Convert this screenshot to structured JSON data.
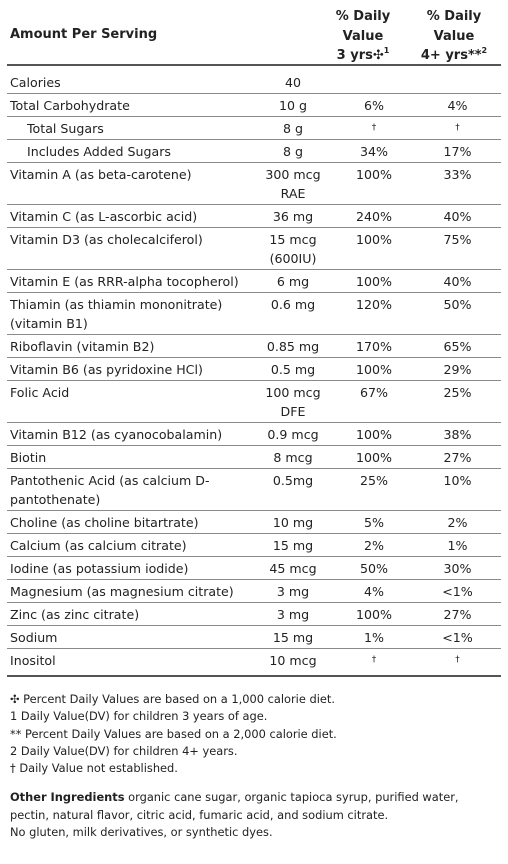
{
  "header": {
    "amount_per_serving": "Amount Per Serving",
    "col3_line1": "% Daily",
    "col3_line2": "Value",
    "col3_line3": "3 yrs✣",
    "col3_sup": "1",
    "col4_line1": "% Daily",
    "col4_line2": "Value",
    "col4_line3": "4+ yrs**",
    "col4_sup": "2"
  },
  "rows": [
    {
      "name": "Calories",
      "amount": "40",
      "dv3": "",
      "dv4": ""
    },
    {
      "name": "Total Carbohydrate",
      "amount": "10 g",
      "dv3": "6%",
      "dv4": "4%"
    },
    {
      "name": "Total Sugars",
      "amount": "8 g",
      "dv3": "†",
      "dv4": "†"
    },
    {
      "name": "Includes Added Sugars",
      "amount": "8 g",
      "dv3": "34%",
      "dv4": "17%"
    },
    {
      "name": "Vitamin A (as beta-carotene)",
      "amount": "300 mcg RAE",
      "dv3": "100%",
      "dv4": "33%"
    },
    {
      "name": "Vitamin C (as L-ascorbic acid)",
      "amount": "36 mg",
      "dv3": "240%",
      "dv4": "40%"
    },
    {
      "name": "Vitamin D3 (as cholecalciferol)",
      "amount": "15 mcg (600IU)",
      "dv3": "100%",
      "dv4": "75%"
    },
    {
      "name": "Vitamin E (as RRR-alpha tocopherol)",
      "amount": "6 mg",
      "dv3": "100%",
      "dv4": "40%"
    },
    {
      "name": "Thiamin (as thiamin mononitrate) (vitamin B1)",
      "amount": "0.6 mg",
      "dv3": "120%",
      "dv4": "50%"
    },
    {
      "name": "Riboflavin (vitamin B2)",
      "amount": "0.85 mg",
      "dv3": "170%",
      "dv4": "65%"
    },
    {
      "name": "Vitamin B6 (as pyridoxine HCl)",
      "amount": "0.5 mg",
      "dv3": "100%",
      "dv4": "29%"
    },
    {
      "name": "Folic Acid",
      "amount": "100 mcg DFE",
      "dv3": "67%",
      "dv4": "25%"
    },
    {
      "name": "Vitamin B12 (as cyanocobalamin)",
      "amount": "0.9 mcg",
      "dv3": "100%",
      "dv4": "38%"
    },
    {
      "name": "Biotin",
      "amount": "8 mcg",
      "dv3": "100%",
      "dv4": "27%"
    },
    {
      "name": "Pantothenic Acid (as calcium D-pantothenate)",
      "amount": "0.5mg",
      "dv3": "25%",
      "dv4": "10%"
    },
    {
      "name": "Choline (as choline bitartrate)",
      "amount": "10 mg",
      "dv3": "5%",
      "dv4": "2%"
    },
    {
      "name": "Calcium (as calcium citrate)",
      "amount": "15 mg",
      "dv3": "2%",
      "dv4": "1%"
    },
    {
      "name": "Iodine (as potassium iodide)",
      "amount": "45 mcg",
      "dv3": "50%",
      "dv4": "30%"
    },
    {
      "name": "Magnesium (as magnesium citrate)",
      "amount": "3 mg",
      "dv3": "4%",
      "dv4": "<1%"
    },
    {
      "name": "Zinc (as zinc citrate)",
      "amount": "3 mg",
      "dv3": "100%",
      "dv4": "27%"
    },
    {
      "name": "Sodium",
      "amount": "15 mg",
      "dv3": "1%",
      "dv4": "<1%"
    },
    {
      "name": "Inositol",
      "amount": "10 mcg",
      "dv3": "†",
      "dv4": "†"
    }
  ],
  "footnotes": [
    "✣ Percent Daily Values are based on a 1,000 calorie diet.",
    "1 Daily Value(DV) for children 3 years of age.",
    "** Percent Daily Values are based on a 2,000 calorie diet.",
    "2 Daily Value(DV) for children 4+ years.",
    "† Daily Value not established."
  ],
  "other_ingredients": {
    "label": "Other Ingredients",
    "text": " organic cane sugar, organic tapioca syrup, purified water, pectin, natural flavor, citric acid, fumaric acid, and sodium citrate.",
    "note": "No gluten, milk derivatives, or synthetic dyes."
  }
}
